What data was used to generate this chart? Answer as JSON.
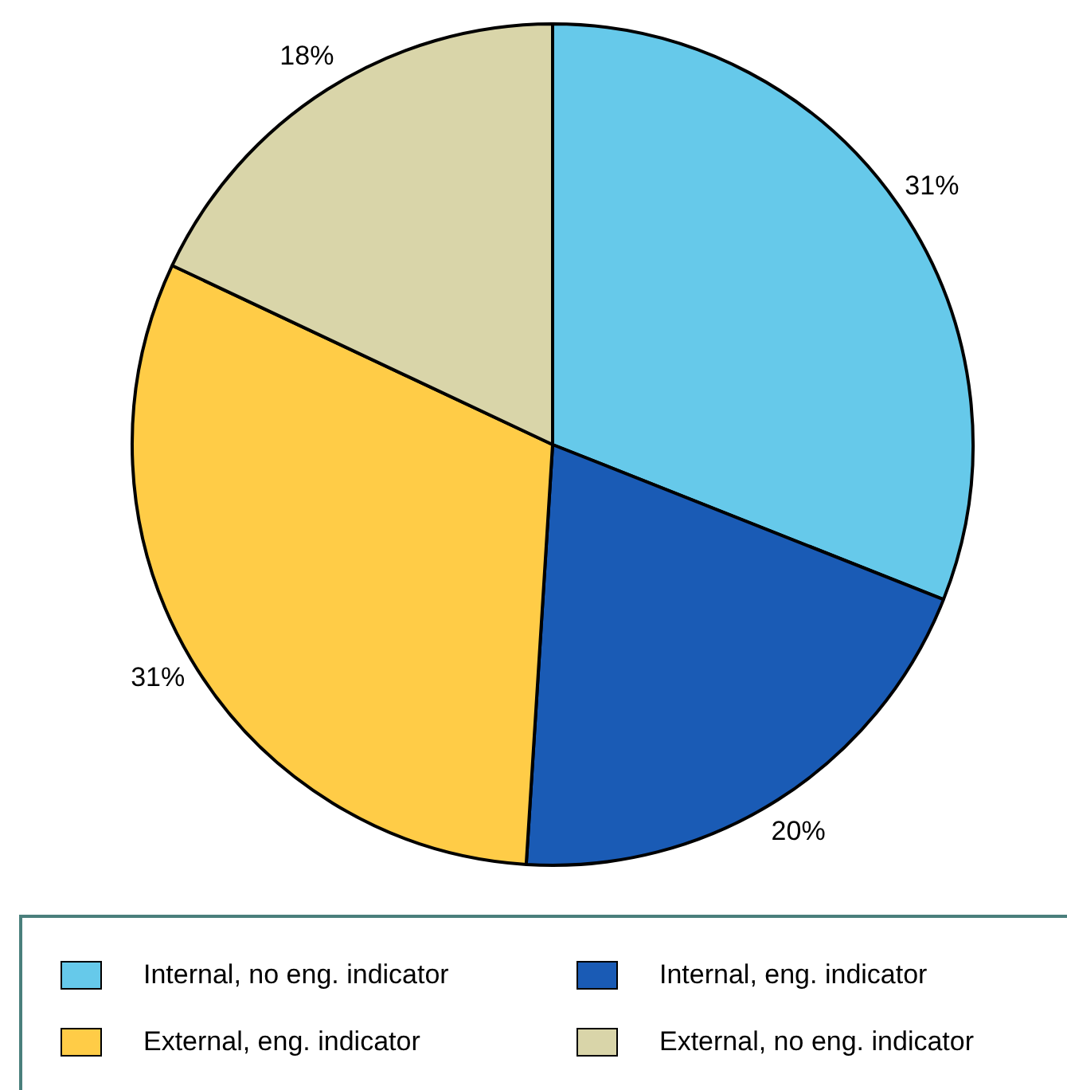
{
  "chart_data": {
    "type": "pie",
    "categories": [
      "Internal, no eng. indicator",
      "Internal, eng. indicator",
      "External, eng. indicator",
      "External, no eng. indicator"
    ],
    "values": [
      31,
      20,
      31,
      18
    ],
    "colors": [
      "#66c9ea",
      "#1a5bb5",
      "#ffcc47",
      "#d9d5a9"
    ],
    "value_labels": [
      "31%",
      "20%",
      "31%",
      "18%"
    ],
    "legend": "bottom"
  }
}
